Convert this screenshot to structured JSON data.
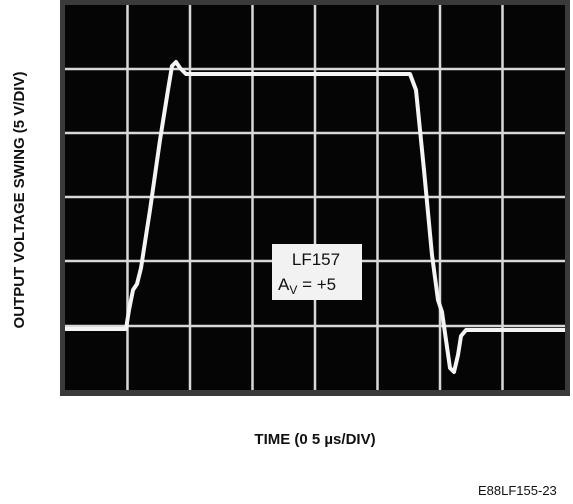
{
  "y_label": "OUTPUT VOLTAGE SWING (5 V/DIV)",
  "x_label": "TIME (0 5 µs/DIV)",
  "annotation": {
    "line1": "LF157",
    "a": "A",
    "sub": "V",
    "rest": " = +5"
  },
  "figure_id": "E88LF155-23"
}
